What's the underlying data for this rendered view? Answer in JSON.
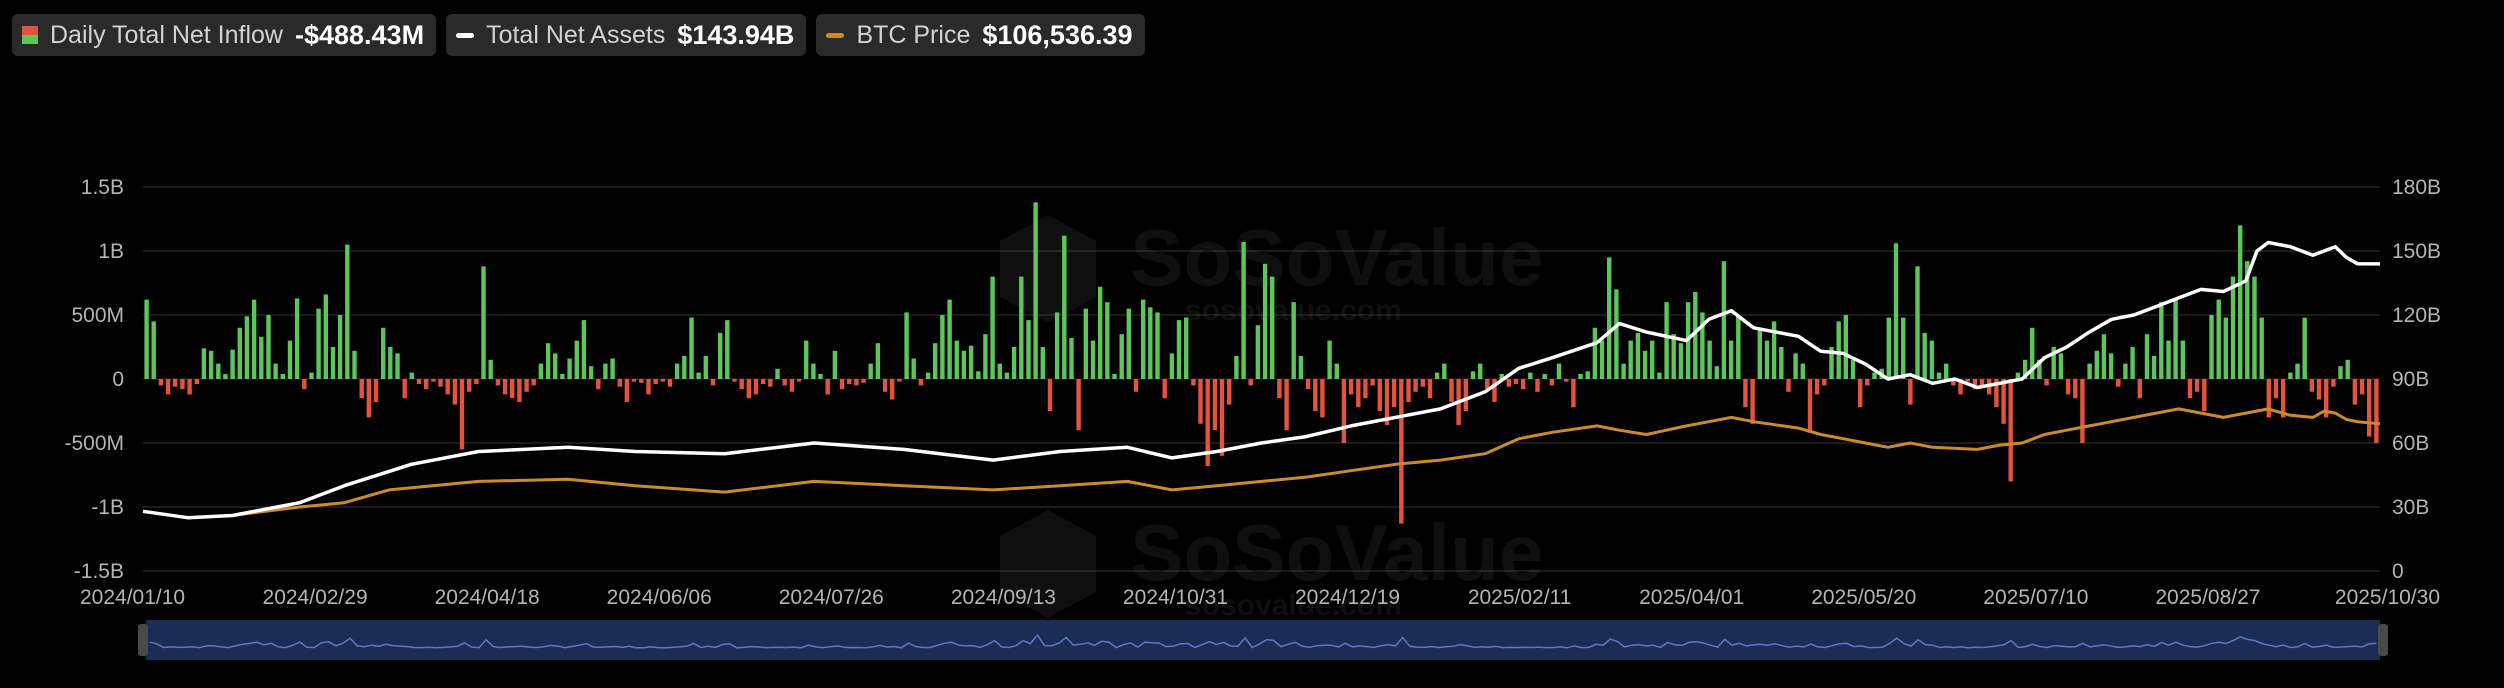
{
  "legend": [
    {
      "label": "Daily Total Net Inflow",
      "value": "-$488.43M",
      "type": "bar",
      "colors": [
        "#e5533d",
        "#5bc65a"
      ]
    },
    {
      "label": "Total Net Assets",
      "value": "$143.94B",
      "type": "line",
      "color": "#ffffff"
    },
    {
      "label": "BTC Price",
      "value": "$106,536.39",
      "type": "line",
      "color": "#c98b2c"
    }
  ],
  "watermark": "SoSoValue",
  "watermark_sub": "sosovalue.com",
  "chart_data": {
    "type": "bar+line",
    "x_labels": [
      "2024/01/10",
      "2024/02/29",
      "2024/04/18",
      "2024/06/06",
      "2024/07/26",
      "2024/09/13",
      "2024/10/31",
      "2024/12/19",
      "2025/02/11",
      "2025/04/01",
      "2025/05/20",
      "2025/07/10",
      "2025/08/27",
      "2025/10/30"
    ],
    "y_left_ticks": [
      "1.5B",
      "1B",
      "500M",
      "0",
      "-500M",
      "-1B",
      "-1.5B"
    ],
    "y_right_ticks": [
      "180B",
      "150B",
      "120B",
      "90B",
      "60B",
      "30B",
      "0"
    ],
    "y_left_range": [
      -1.5,
      1.5
    ],
    "y_right_range": [
      0,
      180
    ],
    "grid": true,
    "positive_color": "#5bc65a",
    "negative_color": "#e5533d",
    "inflow_series_name": "Daily Total Net Inflow",
    "inflow_unit": "B",
    "inflow": [
      0.62,
      0.45,
      -0.05,
      -0.12,
      -0.06,
      -0.08,
      -0.12,
      -0.04,
      0.24,
      0.22,
      0.12,
      0.04,
      0.23,
      0.4,
      0.49,
      0.62,
      0.33,
      0.5,
      0.12,
      0.04,
      0.3,
      0.63,
      -0.08,
      0.05,
      0.55,
      0.66,
      0.25,
      0.5,
      1.05,
      0.22,
      -0.15,
      -0.3,
      -0.18,
      0.4,
      0.25,
      0.2,
      -0.15,
      0.05,
      -0.04,
      -0.08,
      -0.02,
      -0.06,
      -0.12,
      -0.2,
      -0.55,
      -0.1,
      -0.04,
      0.88,
      0.15,
      -0.05,
      -0.12,
      -0.15,
      -0.18,
      -0.1,
      -0.05,
      0.12,
      0.28,
      0.2,
      0.04,
      0.16,
      0.3,
      0.46,
      0.1,
      -0.08,
      0.12,
      0.16,
      -0.06,
      -0.18,
      -0.02,
      -0.03,
      -0.12,
      -0.04,
      -0.02,
      -0.06,
      0.12,
      0.18,
      0.48,
      0.05,
      0.18,
      -0.05,
      0.36,
      0.46,
      -0.02,
      -0.08,
      -0.15,
      -0.12,
      -0.04,
      -0.06,
      0.08,
      -0.05,
      -0.1,
      -0.02,
      0.3,
      0.12,
      0.04,
      -0.12,
      0.22,
      -0.08,
      -0.04,
      -0.05,
      -0.03,
      0.12,
      0.28,
      -0.1,
      -0.16,
      -0.02,
      0.52,
      0.16,
      -0.05,
      0.05,
      0.28,
      0.5,
      0.62,
      0.3,
      0.22,
      0.26,
      0.06,
      0.35,
      0.8,
      0.12,
      0.05,
      0.25,
      0.8,
      0.46,
      1.38,
      0.25,
      -0.25,
      0.52,
      1.12,
      0.32,
      -0.4,
      0.55,
      0.3,
      0.72,
      0.6,
      0.04,
      0.35,
      0.55,
      -0.1,
      0.62,
      0.56,
      0.52,
      -0.15,
      0.2,
      0.46,
      0.48,
      -0.05,
      -0.35,
      -0.68,
      -0.4,
      -0.6,
      -0.2,
      0.18,
      1.07,
      -0.05,
      0.42,
      0.9,
      0.8,
      -0.15,
      -0.4,
      0.6,
      0.18,
      -0.08,
      -0.25,
      -0.3,
      0.3,
      0.12,
      -0.5,
      -0.12,
      -0.22,
      -0.15,
      -0.05,
      -0.25,
      -0.36,
      -0.22,
      -1.13,
      -0.18,
      -0.1,
      -0.06,
      -0.15,
      0.05,
      0.12,
      -0.18,
      -0.36,
      -0.25,
      0.06,
      0.12,
      -0.08,
      -0.18,
      0.04,
      -0.06,
      -0.04,
      -0.08,
      0.05,
      -0.1,
      0.04,
      -0.05,
      0.12,
      -0.02,
      -0.22,
      0.04,
      0.06,
      0.4,
      0.3,
      0.95,
      0.7,
      0.12,
      0.3,
      0.36,
      0.22,
      0.3,
      0.05,
      0.6,
      0.35,
      0.28,
      0.6,
      0.68,
      0.52,
      0.3,
      0.1,
      0.92,
      0.3,
      0.5,
      -0.22,
      -0.35,
      0.4,
      0.3,
      0.45,
      0.25,
      -0.1,
      0.2,
      0.12,
      -0.42,
      -0.12,
      -0.05,
      0.25,
      0.45,
      0.5,
      0.15,
      -0.22,
      -0.05,
      0.05,
      0.08,
      0.48,
      1.06,
      0.48,
      -0.2,
      0.88,
      0.36,
      0.3,
      0.05,
      0.12,
      -0.05,
      -0.12,
      -0.02,
      -0.08,
      -0.05,
      -0.12,
      -0.22,
      -0.35,
      -0.8,
      0.05,
      0.15,
      0.4,
      0.15,
      -0.05,
      0.25,
      0.2,
      -0.12,
      -0.15,
      -0.5,
      0.12,
      0.22,
      0.35,
      0.2,
      -0.06,
      0.12,
      0.25,
      -0.15,
      0.35,
      0.18,
      0.6,
      0.3,
      0.62,
      0.3,
      -0.15,
      -0.1,
      -0.25,
      0.5,
      0.62,
      0.48,
      0.8,
      1.2,
      0.92,
      0.8,
      0.48,
      -0.3,
      -0.15,
      -0.3,
      0.05,
      0.12,
      0.48,
      -0.1,
      -0.16,
      -0.3,
      -0.06,
      0.1,
      0.15,
      -0.2,
      -0.12,
      -0.45,
      -0.5
    ],
    "assets_series_name": "Total Net Assets",
    "assets_unit": "B",
    "assets": [
      [
        0,
        28
      ],
      [
        0.02,
        25
      ],
      [
        0.04,
        26
      ],
      [
        0.07,
        32
      ],
      [
        0.09,
        40
      ],
      [
        0.12,
        50
      ],
      [
        0.15,
        56
      ],
      [
        0.19,
        58
      ],
      [
        0.22,
        56
      ],
      [
        0.26,
        55
      ],
      [
        0.3,
        60
      ],
      [
        0.34,
        57
      ],
      [
        0.38,
        52
      ],
      [
        0.41,
        56
      ],
      [
        0.44,
        58
      ],
      [
        0.46,
        53
      ],
      [
        0.48,
        56
      ],
      [
        0.5,
        60
      ],
      [
        0.52,
        63
      ],
      [
        0.54,
        68
      ],
      [
        0.56,
        72
      ],
      [
        0.58,
        76
      ],
      [
        0.6,
        84
      ],
      [
        0.615,
        95
      ],
      [
        0.63,
        100
      ],
      [
        0.65,
        107
      ],
      [
        0.66,
        116
      ],
      [
        0.672,
        112
      ],
      [
        0.69,
        108
      ],
      [
        0.7,
        118
      ],
      [
        0.71,
        122
      ],
      [
        0.72,
        114
      ],
      [
        0.74,
        110
      ],
      [
        0.75,
        103
      ],
      [
        0.76,
        102
      ],
      [
        0.77,
        97
      ],
      [
        0.78,
        90
      ],
      [
        0.79,
        92
      ],
      [
        0.8,
        88
      ],
      [
        0.81,
        90
      ],
      [
        0.82,
        86
      ],
      [
        0.83,
        88
      ],
      [
        0.84,
        90
      ],
      [
        0.85,
        100
      ],
      [
        0.86,
        105
      ],
      [
        0.87,
        112
      ],
      [
        0.88,
        118
      ],
      [
        0.89,
        120
      ],
      [
        0.9,
        124
      ],
      [
        0.91,
        128
      ],
      [
        0.92,
        132
      ],
      [
        0.93,
        131
      ],
      [
        0.94,
        136
      ],
      [
        0.945,
        150
      ],
      [
        0.95,
        154
      ],
      [
        0.96,
        152
      ],
      [
        0.97,
        148
      ],
      [
        0.975,
        150
      ],
      [
        0.98,
        152
      ],
      [
        0.985,
        147
      ],
      [
        0.99,
        144
      ],
      [
        1.0,
        143.94
      ]
    ],
    "btc_series_name": "BTC Price",
    "btc_unit": "B",
    "btc": [
      [
        0,
        28
      ],
      [
        0.02,
        25
      ],
      [
        0.04,
        26
      ],
      [
        0.07,
        30
      ],
      [
        0.09,
        32
      ],
      [
        0.11,
        38
      ],
      [
        0.15,
        42
      ],
      [
        0.19,
        43
      ],
      [
        0.22,
        40
      ],
      [
        0.26,
        37
      ],
      [
        0.3,
        42
      ],
      [
        0.34,
        40
      ],
      [
        0.38,
        38
      ],
      [
        0.41,
        40
      ],
      [
        0.44,
        42
      ],
      [
        0.46,
        38
      ],
      [
        0.48,
        40
      ],
      [
        0.5,
        42
      ],
      [
        0.52,
        44
      ],
      [
        0.54,
        47
      ],
      [
        0.56,
        50
      ],
      [
        0.58,
        52
      ],
      [
        0.6,
        55
      ],
      [
        0.615,
        62
      ],
      [
        0.63,
        65
      ],
      [
        0.65,
        68
      ],
      [
        0.66,
        66
      ],
      [
        0.672,
        64
      ],
      [
        0.69,
        68
      ],
      [
        0.7,
        70
      ],
      [
        0.71,
        72
      ],
      [
        0.72,
        70
      ],
      [
        0.74,
        67
      ],
      [
        0.75,
        64
      ],
      [
        0.76,
        62
      ],
      [
        0.77,
        60
      ],
      [
        0.78,
        58
      ],
      [
        0.79,
        60
      ],
      [
        0.8,
        58
      ],
      [
        0.82,
        57
      ],
      [
        0.83,
        59
      ],
      [
        0.84,
        60
      ],
      [
        0.85,
        64
      ],
      [
        0.86,
        66
      ],
      [
        0.87,
        68
      ],
      [
        0.88,
        70
      ],
      [
        0.89,
        72
      ],
      [
        0.9,
        74
      ],
      [
        0.91,
        76
      ],
      [
        0.92,
        74
      ],
      [
        0.93,
        72
      ],
      [
        0.94,
        74
      ],
      [
        0.95,
        76
      ],
      [
        0.96,
        73
      ],
      [
        0.97,
        72
      ],
      [
        0.975,
        75
      ],
      [
        0.98,
        74
      ],
      [
        0.985,
        71
      ],
      [
        0.99,
        70
      ],
      [
        1.0,
        69
      ]
    ]
  }
}
